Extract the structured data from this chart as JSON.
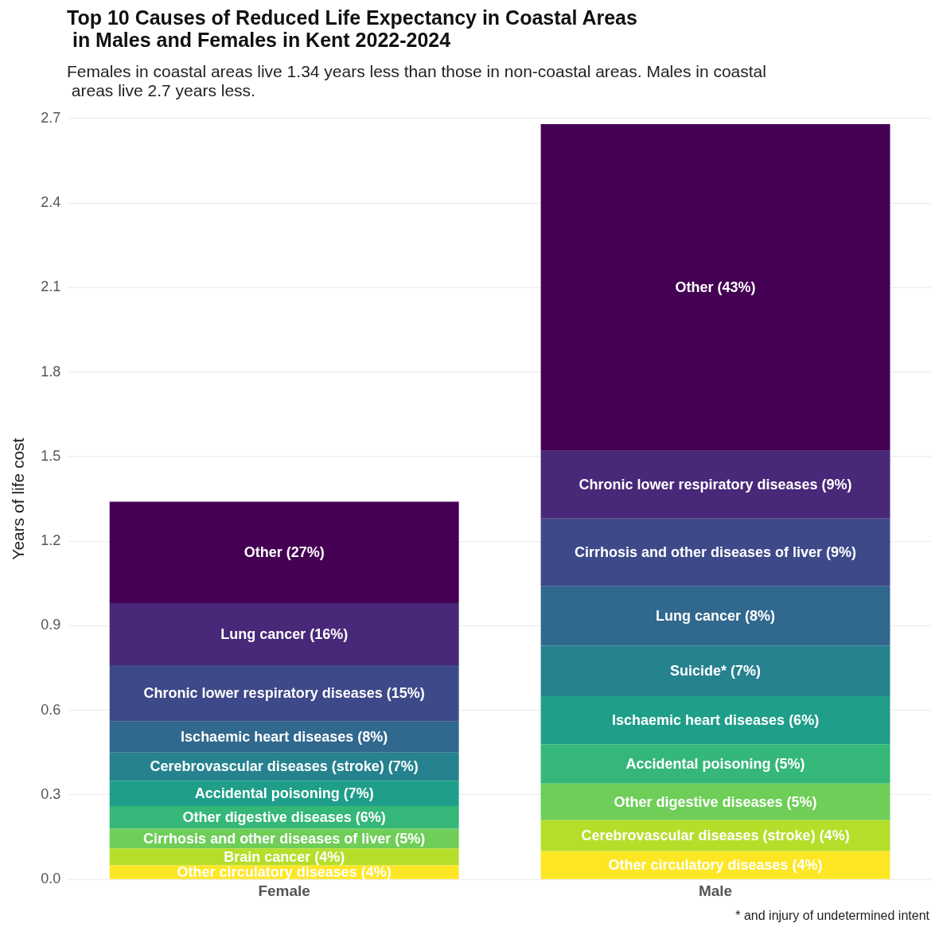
{
  "chart_data": {
    "type": "bar",
    "title": "Top 10 Causes of Reduced Life Expectancy in Coastal Areas\n in Males and Females in Kent 2022-2024",
    "subtitle": "Females in coastal areas live 1.34 years less than those in non-coastal areas. Males in coastal\n areas live 2.7 years less.",
    "ylabel": "Years of life cost",
    "categories": [
      "Female",
      "Male"
    ],
    "stacked": true,
    "grid": "y",
    "ylim": [
      0,
      2.7
    ],
    "yticks": [
      {
        "value": 0,
        "label": "0.0"
      },
      {
        "value": 0.3,
        "label": "0.3"
      },
      {
        "value": 0.6,
        "label": "0.6"
      },
      {
        "value": 0.9,
        "label": "0.9"
      },
      {
        "value": 1.2,
        "label": "1.2"
      },
      {
        "value": 1.5,
        "label": "1.5"
      },
      {
        "value": 1.8,
        "label": "1.8"
      },
      {
        "value": 2.1,
        "label": "2.1"
      },
      {
        "value": 2.4,
        "label": "2.4"
      },
      {
        "value": 2.7,
        "label": "2.7"
      }
    ],
    "series": [
      {
        "color": "#fde725",
        "values": [
          0.05,
          0.1
        ]
      },
      {
        "color": "#b5de2b",
        "values": [
          0.06,
          0.11
        ]
      },
      {
        "color": "#6ece58",
        "values": [
          0.07,
          0.13
        ]
      },
      {
        "color": "#35b779",
        "values": [
          0.08,
          0.14
        ]
      },
      {
        "color": "#1f9e89",
        "values": [
          0.09,
          0.17
        ]
      },
      {
        "color": "#26828e",
        "values": [
          0.1,
          0.18
        ]
      },
      {
        "color": "#31688e",
        "values": [
          0.11,
          0.21
        ]
      },
      {
        "color": "#3e4989",
        "values": [
          0.2,
          0.24
        ]
      },
      {
        "color": "#482878",
        "values": [
          0.22,
          0.24
        ]
      },
      {
        "color": "#440154",
        "values": [
          0.36,
          1.16
        ]
      }
    ],
    "annotations": [
      "Other circulatory diseases (4%)",
      "Brain cancer (4%)",
      "Cirrhosis and other diseases of liver (5%)",
      "Other digestive diseases (6%)",
      "Accidental poisoning (7%)",
      "Cerebrovascular diseases (stroke) (7%)",
      "Ischaemic heart diseases (8%)",
      "Chronic lower respiratory diseases (15%)",
      "Lung cancer (16%)",
      "Other (27%)",
      "Other circulatory diseases (4%)",
      "Cerebrovascular diseases (stroke) (4%)",
      "Other digestive diseases (5%)",
      "Accidental poisoning (5%)",
      "Ischaemic heart diseases (6%)",
      "Suicide* (7%)",
      "Lung cancer (8%)",
      "Cirrhosis and other diseases of liver (9%)",
      "Chronic lower respiratory diseases (9%)",
      "Other (43%)",
      "* and injury of undetermined intent"
    ]
  }
}
